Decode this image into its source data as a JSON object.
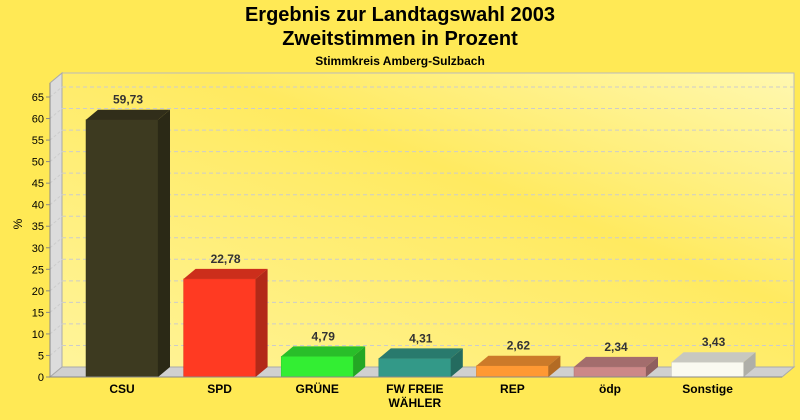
{
  "chart_data": {
    "type": "bar",
    "title": "Ergebnis zur Landtagswahl 2003",
    "subtitle": "Zweitstimmen in Prozent",
    "subsubtitle": "Stimmkreis Amberg-Sulzbach",
    "xlabel": "",
    "ylabel": "%",
    "ylim": [
      0,
      65
    ],
    "yticks": [
      0,
      5,
      10,
      15,
      20,
      25,
      30,
      35,
      40,
      45,
      50,
      55,
      60,
      65
    ],
    "grid": true,
    "categories": [
      "CSU",
      "SPD",
      "GRÜNE",
      "FW FREIE WÄHLER",
      "REP",
      "ödp",
      "Sonstige"
    ],
    "values": [
      59.73,
      22.78,
      4.79,
      4.31,
      2.62,
      2.34,
      3.43
    ],
    "data_labels": [
      "59,73",
      "22,78",
      "4,79",
      "4,31",
      "2,62",
      "2,34",
      "3,43"
    ],
    "colors": [
      "#3d3a20",
      "#ff3a22",
      "#33ee33",
      "#339988",
      "#ff9933",
      "#cc8888",
      "#fafaf0"
    ]
  }
}
